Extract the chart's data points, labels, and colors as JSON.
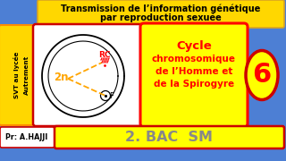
{
  "bg_color": "#4d7fd4",
  "title_text1": "Transmission de l’information génétique",
  "title_text2": "par reproduction sexuée",
  "title_bg": "#FFD700",
  "left_text_line1": "SVT au lycée",
  "left_text_line2": "Autrement",
  "left_bg": "#FFD700",
  "left_border": "#FF8C00",
  "cycle_title": "Cycle\nchromosomique\nde l’Homme et\nde la Spirogyre",
  "cycle_bg": "#FFFF00",
  "cycle_border": "#FF0000",
  "number": "6",
  "number_bg": "#FFFF00",
  "number_border": "#CC0000",
  "label_2n": "2n",
  "label_RC": "RC",
  "label_F": "F",
  "diagram_bg": "#FFFFFF",
  "diagram_border": "#CC0000",
  "author": "Pr: A.HAJJI",
  "bac_text": "2. BAC  SM",
  "bac_bg": "#FFFF00",
  "bac_border": "#CC0000",
  "orange": "#FFA500",
  "red": "#CC0000",
  "darkred": "#8B0000"
}
